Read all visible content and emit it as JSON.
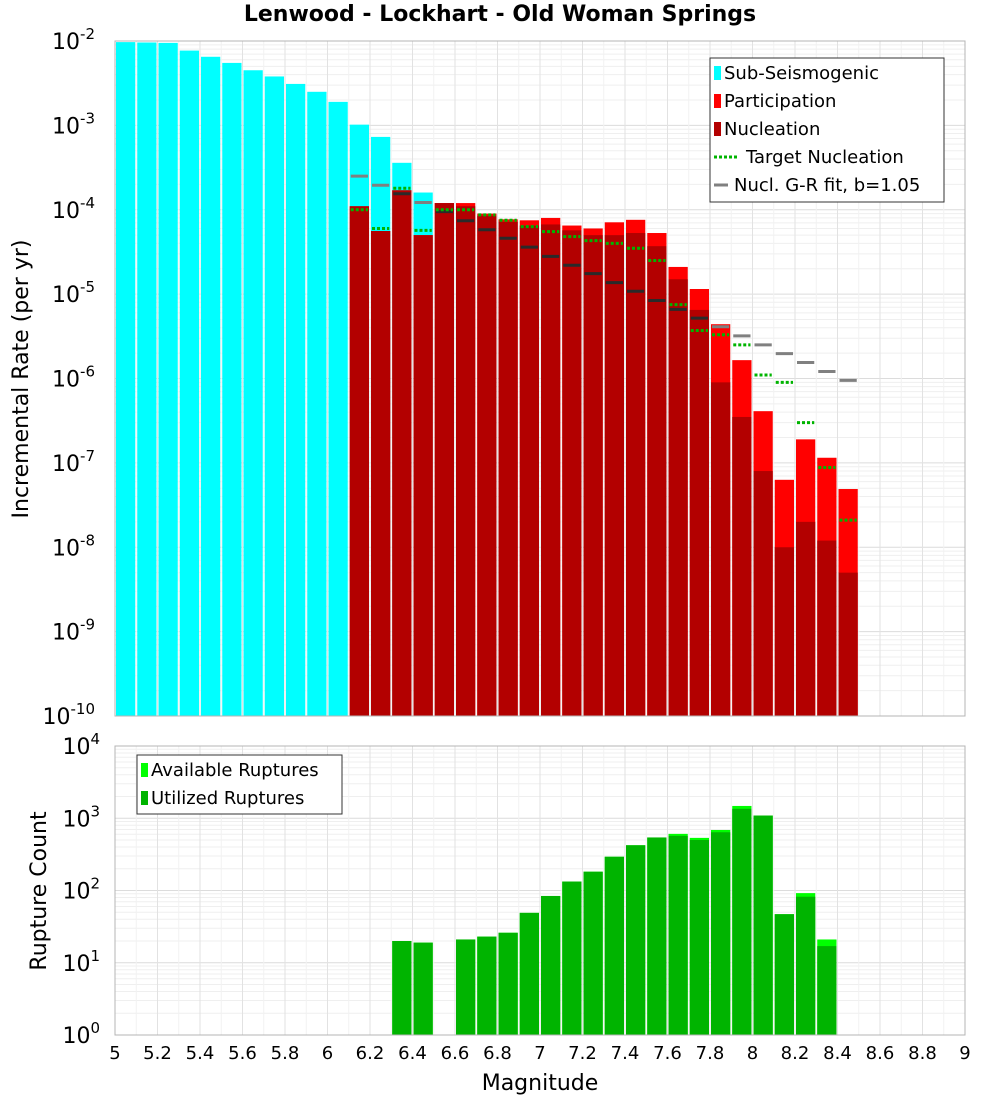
{
  "chart_data": [
    {
      "type": "bar",
      "title": "Lenwood - Lockhart - Old Woman Springs",
      "xlabel": "",
      "ylabel": "Incremental Rate (per yr)",
      "xlim": [
        5,
        9
      ],
      "ylim": [
        1e-10,
        0.01
      ],
      "yscale": "log",
      "grid": true,
      "legend_position": "top-right",
      "colors": {
        "sub_seismogenic": "#00ffff",
        "participation": "#ff0000",
        "nucleation": "#b30000",
        "target_nucleation": "#00b400",
        "gr_fit": "#808080"
      },
      "legend": [
        "Sub-Seismogenic",
        "Participation",
        "Nucleation",
        "Target Nucleation",
        "Nucl. G-R fit, b=1.05"
      ],
      "series": [
        {
          "name": "Sub-Seismogenic",
          "x": [
            5.05,
            5.15,
            5.25,
            5.35,
            5.45,
            5.55,
            5.65,
            5.75,
            5.85,
            5.95,
            6.05,
            6.15,
            6.25,
            6.35,
            6.45
          ],
          "values": [
            0.0097,
            0.0096,
            0.0095,
            0.0077,
            0.0065,
            0.0055,
            0.0045,
            0.0038,
            0.0031,
            0.0025,
            0.0019,
            0.00102,
            0.00073,
            0.00036,
            0.00016
          ]
        },
        {
          "name": "Participation",
          "x": [
            6.15,
            6.25,
            6.35,
            6.45,
            6.55,
            6.65,
            6.75,
            6.85,
            6.95,
            7.05,
            7.15,
            7.25,
            7.35,
            7.45,
            7.55,
            7.65,
            7.75,
            7.85,
            7.95,
            8.05,
            8.15,
            8.25,
            8.35,
            8.45
          ],
          "values": [
            0.00011,
            5.6e-05,
            0.00017,
            5e-05,
            0.00012,
            0.00012,
            9e-05,
            7.7e-05,
            7.5e-05,
            8e-05,
            6.5e-05,
            6e-05,
            7.1e-05,
            7.6e-05,
            5.3e-05,
            2.1e-05,
            1.15e-05,
            4.4e-06,
            1.65e-06,
            4.1e-07,
            6.3e-08,
            1.9e-07,
            1.15e-07,
            4.9e-08
          ]
        },
        {
          "name": "Nucleation",
          "x": [
            6.15,
            6.25,
            6.35,
            6.45,
            6.55,
            6.65,
            6.75,
            6.85,
            6.95,
            7.05,
            7.15,
            7.25,
            7.35,
            7.45,
            7.55,
            7.65,
            7.75,
            7.85,
            7.95,
            8.05,
            8.15,
            8.25,
            8.35,
            8.45
          ],
          "values": [
            0.00011,
            5.6e-05,
            0.00017,
            5e-05,
            0.00012,
            0.00011,
            8.5e-05,
            7.2e-05,
            6.5e-05,
            6.7e-05,
            5.7e-05,
            5e-05,
            5e-05,
            5.3e-05,
            3.7e-05,
            1.5e-05,
            6.5e-06,
            9e-07,
            3.5e-07,
            8e-08,
            1e-08,
            2e-08,
            1.2e-08,
            5e-09
          ]
        },
        {
          "name": "Target Nucleation",
          "x": [
            6.15,
            6.25,
            6.35,
            6.45,
            6.55,
            6.65,
            6.75,
            6.85,
            6.95,
            7.05,
            7.15,
            7.25,
            7.35,
            7.45,
            7.55,
            7.65,
            7.75,
            7.85,
            7.95,
            8.05,
            8.15,
            8.25,
            8.35,
            8.45
          ],
          "values": [
            0.0001,
            6e-05,
            0.00018,
            5.7e-05,
            0.0001,
            0.0001,
            8.7e-05,
            7.5e-05,
            6.3e-05,
            5.5e-05,
            4.8e-05,
            4.3e-05,
            4e-05,
            3.5e-05,
            2.5e-05,
            7.5e-06,
            3.7e-06,
            3.3e-06,
            2.5e-06,
            1.1e-06,
            9e-07,
            3e-07,
            8.8e-08,
            2.1e-08
          ]
        },
        {
          "name": "Nucl. G-R fit, b=1.05",
          "x": [
            6.15,
            6.25,
            6.35,
            6.45,
            6.55,
            6.65,
            6.75,
            6.85,
            6.95,
            7.05,
            7.15,
            7.25,
            7.35,
            7.45,
            7.55,
            7.65,
            7.75,
            7.85,
            7.95,
            8.05,
            8.15,
            8.25,
            8.35,
            8.45
          ],
          "values": [
            0.00025,
            0.000195,
            0.000155,
            0.000122,
            9.5e-05,
            7.4e-05,
            5.8e-05,
            4.6e-05,
            3.6e-05,
            2.8e-05,
            2.2e-05,
            1.75e-05,
            1.37e-05,
            1.08e-05,
            8.4e-06,
            6.6e-06,
            5.2e-06,
            4.1e-06,
            3.2e-06,
            2.5e-06,
            1.97e-06,
            1.55e-06,
            1.21e-06,
            9.5e-07
          ]
        }
      ]
    },
    {
      "type": "bar",
      "title": "",
      "xlabel": "Magnitude",
      "ylabel": "Rupture Count",
      "xlim": [
        5,
        9
      ],
      "ylim": [
        1,
        10000
      ],
      "yscale": "log",
      "grid": true,
      "legend_position": "top-left",
      "colors": {
        "available": "#00ff00",
        "utilized": "#00b400"
      },
      "legend": [
        "Available Ruptures",
        "Utilized Ruptures"
      ],
      "series": [
        {
          "name": "Available Ruptures",
          "x": [
            6.35,
            6.45,
            6.65,
            6.75,
            6.85,
            6.95,
            7.05,
            7.15,
            7.25,
            7.35,
            7.45,
            7.55,
            7.65,
            7.75,
            7.85,
            7.95,
            8.05,
            8.15,
            8.25,
            8.35
          ],
          "values": [
            20,
            19,
            21,
            23,
            26,
            49,
            84,
            133,
            182,
            293,
            423,
            542,
            608,
            535,
            688,
            1480,
            1090,
            47,
            92,
            21
          ]
        },
        {
          "name": "Utilized Ruptures",
          "x": [
            6.35,
            6.45,
            6.65,
            6.75,
            6.85,
            6.95,
            7.05,
            7.15,
            7.25,
            7.35,
            7.45,
            7.55,
            7.65,
            7.75,
            7.85,
            7.95,
            8.05,
            8.15,
            8.25,
            8.35
          ],
          "values": [
            20,
            19,
            21,
            23,
            26,
            49,
            84,
            133,
            182,
            293,
            423,
            542,
            570,
            500,
            640,
            1350,
            1090,
            47,
            82,
            17
          ]
        }
      ]
    }
  ]
}
